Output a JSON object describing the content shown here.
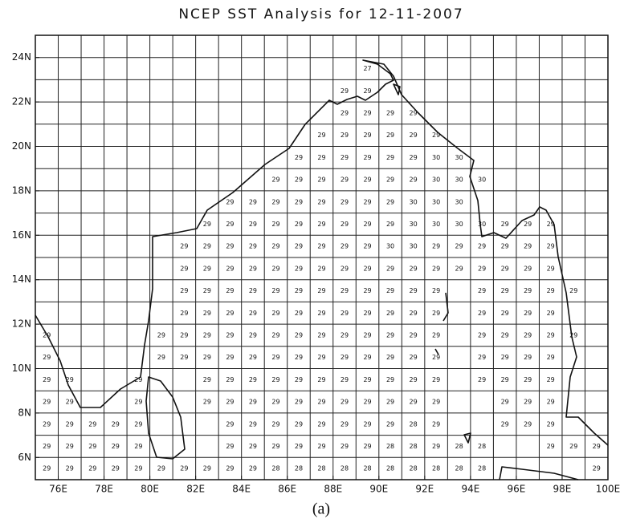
{
  "title": "NCEP SST Analysis for 12-11-2007",
  "x_labels": [
    "76E",
    "78E",
    "80E",
    "82E",
    "84E",
    "86E",
    "88E",
    "90E",
    "92E",
    "94E",
    "96E",
    "98E",
    "100E"
  ],
  "y_labels": [
    "6N",
    "8N",
    "10N",
    "12N",
    "14N",
    "16N",
    "18N",
    "20N",
    "22N",
    "24N"
  ],
  "grid_values": [
    [
      null,
      null,
      null,
      null,
      null,
      null,
      null,
      null,
      null,
      null,
      null,
      null,
      null,
      null,
      27,
      null,
      null,
      null,
      null,
      null,
      null,
      null,
      null,
      null,
      null
    ],
    [
      null,
      null,
      null,
      null,
      null,
      null,
      null,
      null,
      null,
      null,
      null,
      null,
      null,
      29,
      29,
      null,
      null,
      null,
      null,
      null,
      null,
      null,
      null,
      null,
      null
    ],
    [
      null,
      null,
      null,
      null,
      null,
      null,
      null,
      null,
      null,
      null,
      null,
      null,
      null,
      29,
      29,
      29,
      29,
      null,
      null,
      null,
      null,
      null,
      null,
      null,
      null
    ],
    [
      null,
      null,
      null,
      null,
      null,
      null,
      null,
      null,
      null,
      null,
      null,
      null,
      29,
      29,
      29,
      29,
      29,
      29,
      null,
      null,
      null,
      null,
      null,
      null,
      null
    ],
    [
      null,
      null,
      null,
      null,
      null,
      null,
      null,
      null,
      null,
      null,
      null,
      29,
      29,
      29,
      29,
      29,
      29,
      30,
      30,
      null,
      null,
      null,
      null,
      null,
      null
    ],
    [
      null,
      null,
      null,
      null,
      null,
      null,
      null,
      null,
      null,
      null,
      29,
      29,
      29,
      29,
      29,
      29,
      29,
      30,
      30,
      30,
      null,
      null,
      null,
      null,
      null
    ],
    [
      null,
      null,
      null,
      null,
      null,
      null,
      null,
      null,
      29,
      29,
      29,
      29,
      29,
      29,
      29,
      29,
      30,
      30,
      30,
      null,
      null,
      null,
      null,
      null,
      null
    ],
    [
      null,
      null,
      null,
      null,
      null,
      null,
      null,
      29,
      29,
      29,
      29,
      29,
      29,
      29,
      29,
      29,
      30,
      30,
      30,
      30,
      29,
      29,
      29,
      null,
      null
    ],
    [
      null,
      null,
      null,
      null,
      null,
      null,
      29,
      29,
      29,
      29,
      29,
      29,
      29,
      29,
      29,
      30,
      30,
      29,
      29,
      29,
      29,
      29,
      29,
      null,
      null
    ],
    [
      null,
      null,
      null,
      null,
      null,
      null,
      29,
      29,
      29,
      29,
      29,
      29,
      29,
      29,
      29,
      29,
      29,
      29,
      29,
      29,
      29,
      29,
      29,
      null,
      null
    ],
    [
      null,
      null,
      null,
      null,
      null,
      null,
      29,
      29,
      29,
      29,
      29,
      29,
      29,
      29,
      29,
      29,
      29,
      29,
      null,
      29,
      29,
      29,
      29,
      29,
      null
    ],
    [
      null,
      null,
      null,
      null,
      null,
      null,
      29,
      29,
      29,
      29,
      29,
      29,
      29,
      29,
      29,
      29,
      29,
      29,
      null,
      29,
      29,
      29,
      29,
      null,
      null
    ],
    [
      29,
      null,
      null,
      null,
      null,
      29,
      29,
      29,
      29,
      29,
      29,
      29,
      29,
      29,
      29,
      29,
      29,
      29,
      null,
      29,
      29,
      29,
      29,
      29,
      null
    ],
    [
      29,
      null,
      null,
      null,
      null,
      29,
      29,
      29,
      29,
      29,
      29,
      29,
      29,
      29,
      29,
      29,
      29,
      29,
      null,
      29,
      29,
      29,
      29,
      null,
      null
    ],
    [
      29,
      29,
      null,
      null,
      29,
      null,
      null,
      29,
      29,
      29,
      29,
      29,
      29,
      29,
      29,
      29,
      29,
      29,
      null,
      29,
      29,
      29,
      29,
      null,
      null
    ],
    [
      29,
      29,
      null,
      null,
      29,
      null,
      null,
      29,
      29,
      29,
      29,
      29,
      29,
      29,
      29,
      29,
      29,
      29,
      null,
      null,
      29,
      29,
      29,
      null,
      null
    ],
    [
      29,
      29,
      29,
      29,
      29,
      null,
      null,
      null,
      29,
      29,
      29,
      29,
      29,
      29,
      29,
      29,
      28,
      29,
      null,
      null,
      29,
      29,
      29,
      null,
      null
    ],
    [
      29,
      29,
      29,
      29,
      29,
      null,
      null,
      null,
      29,
      29,
      29,
      29,
      29,
      29,
      29,
      28,
      28,
      29,
      28,
      28,
      null,
      null,
      29,
      29,
      29
    ],
    [
      29,
      29,
      29,
      29,
      29,
      29,
      29,
      29,
      29,
      29,
      28,
      28,
      28,
      28,
      28,
      28,
      28,
      28,
      28,
      28,
      null,
      null,
      null,
      null,
      29
    ]
  ],
  "caption": "(a)"
}
